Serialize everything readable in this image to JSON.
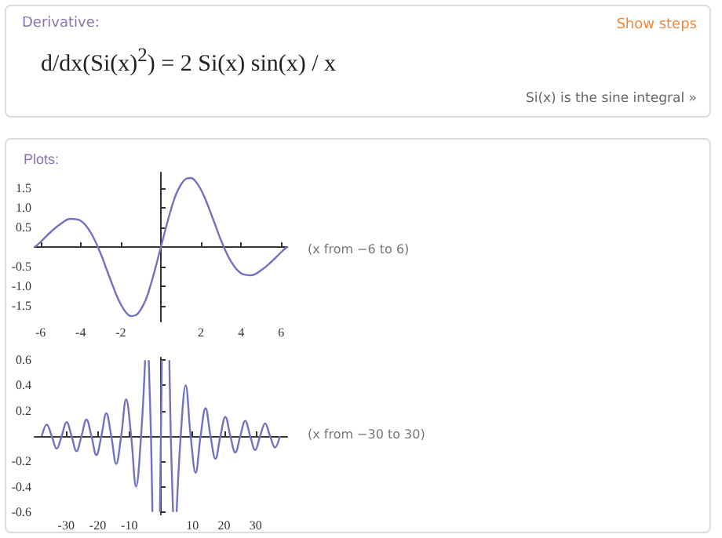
{
  "chart_data": [
    {
      "type": "other",
      "title": "Derivative:",
      "annotations": [
        "d/dx(Si(x)$^{2}$) = 2 Si(x) sin(x) / x",
        "Show steps",
        "Si(x) is the sine integral »"
      ]
    },
    {
      "type": "line",
      "title": "Plots:",
      "annotations": [
        "(x from −6 to 6)"
      ],
      "color": "#7272c2",
      "x": [
        -6.28,
        -6,
        -5.5,
        -5,
        -4.5,
        -4,
        -3.5,
        -3,
        -2.75,
        -2.5,
        -2.25,
        -2,
        -1.75,
        -1.5,
        -1.25,
        -1,
        -0.75,
        -0.5,
        -0.25,
        0,
        0.25,
        0.5,
        0.75,
        1,
        1.25,
        1.5,
        1.75,
        2,
        2.25,
        2.5,
        2.75,
        3,
        3.5,
        4,
        4.5,
        5,
        5.5,
        6,
        6.28
      ],
      "values": [
        0,
        0.13,
        0.38,
        0.59,
        0.72,
        0.67,
        0.37,
        -0.17,
        -0.51,
        -0.85,
        -1.18,
        -1.46,
        -1.66,
        -1.76,
        -1.74,
        -1.59,
        -1.34,
        -0.95,
        -0.49,
        0,
        0.49,
        0.95,
        1.34,
        1.59,
        1.74,
        1.76,
        1.66,
        1.46,
        1.18,
        0.85,
        0.51,
        0.17,
        -0.37,
        -0.67,
        -0.72,
        -0.59,
        -0.38,
        -0.13,
        0
      ],
      "xlim": [
        -6.3,
        6.3
      ],
      "ylim": [
        -1.9,
        1.9
      ],
      "xticks": [
        -6,
        -4,
        -2,
        2,
        4,
        6
      ],
      "yticks": [
        -1.5,
        {
          "value": -1,
          "label": "-1.0"
        },
        -0.5,
        0.5,
        {
          "value": 1,
          "label": "1.0"
        },
        1.5
      ]
    },
    {
      "type": "line",
      "annotations": [
        "(x from −30 to 30)"
      ],
      "color": "#7272c2",
      "x": [
        -37.7,
        -36.13,
        -34.56,
        -32.99,
        -31.42,
        -29.85,
        -28.27,
        -26.7,
        -25.13,
        -23.56,
        -21.99,
        -20.42,
        -18.85,
        -17.28,
        -15.71,
        -14.14,
        -12.57,
        -11,
        -9.42,
        -7.85,
        -6.28,
        -4.99,
        -4.71,
        -3.85,
        -3.14,
        -2.68,
        -1.57,
        -0.31,
        0,
        0.31,
        1.57,
        2.68,
        3.14,
        3.85,
        4.71,
        4.99,
        6.28,
        7.85,
        9.42,
        11,
        12.57,
        14.14,
        15.71,
        17.28,
        18.85,
        20.42,
        21.99,
        23.56,
        25.13,
        26.7,
        28.27,
        29.85,
        31.42,
        32.99,
        34.56,
        36.13,
        37.7
      ],
      "values": [
        0,
        0.09,
        0,
        -0.1,
        0,
        0.11,
        0,
        -0.12,
        0,
        0.13,
        0,
        -0.15,
        0,
        0.18,
        0,
        -0.22,
        0,
        0.29,
        0,
        -0.4,
        0,
        0.6,
        null,
        0.6,
        0,
        -0.6,
        null,
        -0.6,
        0,
        0.6,
        null,
        0.6,
        0,
        -0.6,
        null,
        -0.6,
        0,
        0.4,
        0,
        -0.29,
        0,
        0.22,
        0,
        -0.18,
        0,
        0.15,
        0,
        -0.13,
        0,
        0.12,
        0,
        -0.11,
        0,
        0.1,
        0,
        -0.09,
        0
      ],
      "xlim": [
        -40,
        40
      ],
      "ylim": [
        -0.62,
        0.62
      ],
      "xticks": [
        -30,
        -20,
        -10,
        10,
        20,
        30
      ],
      "yticks": [
        -0.6,
        -0.4,
        -0.2,
        0.2,
        0.4,
        0.6
      ]
    }
  ]
}
